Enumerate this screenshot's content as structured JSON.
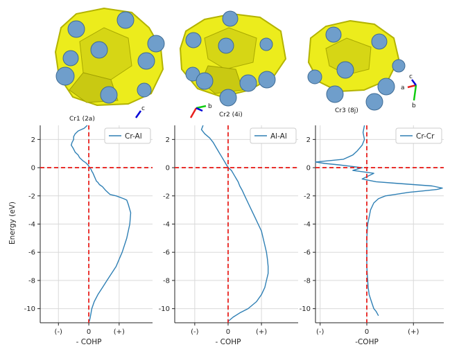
{
  "structures": [
    {
      "label": "Cr1 (2a)"
    },
    {
      "label": "Cr2 (4i)"
    },
    {
      "label": "Cr3 (8j)"
    }
  ],
  "axes_glyphs": {
    "a": "a",
    "b": "b",
    "c": "c"
  },
  "colors": {
    "curve": "#2e7fb4",
    "fermi": "#e8201d",
    "surface": "#ecec1c",
    "surface_shadow": "#b3b300",
    "atom": "#6f9ecb"
  },
  "chart_data": [
    {
      "type": "line",
      "panel": "Cr-Al",
      "series": [
        {
          "name": "Cr-Al",
          "x": [
            0.02,
            0.05,
            0.1,
            0.18,
            0.3,
            0.45,
            0.6,
            0.75,
            0.9,
            1.0,
            1.1,
            1.25,
            1.35,
            1.38,
            1.3,
            1.25,
            1.15,
            0.9,
            0.7,
            0.55,
            0.45,
            0.35,
            0.3,
            0.25,
            0.22,
            0.2,
            0.17,
            0.15,
            0.13,
            0.1,
            0.08,
            0.05,
            0.02,
            -0.03,
            -0.1,
            -0.2,
            -0.3,
            -0.35,
            -0.45,
            -0.52,
            -0.58,
            -0.55,
            -0.5,
            -0.5,
            -0.45,
            -0.35,
            -0.15,
            -0.05
          ],
          "y": [
            -10.9,
            -10.6,
            -10.0,
            -9.5,
            -9.0,
            -8.5,
            -8.0,
            -7.5,
            -7.0,
            -6.5,
            -6.0,
            -5.0,
            -4.0,
            -3.2,
            -2.6,
            -2.3,
            -2.2,
            -2.0,
            -1.9,
            -1.6,
            -1.35,
            -1.2,
            -1.05,
            -0.95,
            -0.8,
            -0.7,
            -0.55,
            -0.45,
            -0.35,
            -0.25,
            -0.15,
            -0.05,
            0.05,
            0.2,
            0.35,
            0.5,
            0.7,
            0.9,
            1.1,
            1.4,
            1.6,
            1.8,
            2.0,
            2.2,
            2.4,
            2.6,
            2.8,
            3.0
          ]
        }
      ],
      "xlabel": "- COHP",
      "ylabel": "Energy (eV)",
      "xticklabels": [
        "(-)",
        "0",
        "(+)"
      ],
      "xticks": [
        -1,
        0,
        1
      ],
      "xlim": [
        -1.6,
        2.1
      ],
      "ylim": [
        -11.0,
        3.0
      ],
      "yticks": [
        2,
        0,
        -2,
        -4,
        -6,
        -8,
        -10
      ],
      "grid": true,
      "legend": "top-right",
      "fermi_level": 0
    },
    {
      "type": "line",
      "panel": "Al-Al",
      "series": [
        {
          "name": "Al-Al",
          "x": [
            0.0,
            0.15,
            0.35,
            0.6,
            0.85,
            1.0,
            1.1,
            1.15,
            1.2,
            1.2,
            1.18,
            1.15,
            1.1,
            1.05,
            1.0,
            0.9,
            0.8,
            0.7,
            0.6,
            0.5,
            0.42,
            0.35,
            0.3,
            0.25,
            0.2,
            0.15,
            0.1,
            0.05,
            0.0,
            -0.05,
            -0.1,
            -0.15,
            -0.2,
            -0.25,
            -0.3,
            -0.35,
            -0.4,
            -0.45,
            -0.55,
            -0.7,
            -0.8,
            -0.75
          ],
          "y": [
            -10.9,
            -10.6,
            -10.3,
            -10.0,
            -9.5,
            -9.0,
            -8.5,
            -8.0,
            -7.5,
            -7.0,
            -6.5,
            -6.0,
            -5.5,
            -5.0,
            -4.5,
            -4.0,
            -3.5,
            -3.0,
            -2.5,
            -2.0,
            -1.6,
            -1.3,
            -1.0,
            -0.8,
            -0.6,
            -0.4,
            -0.2,
            -0.1,
            0.0,
            0.2,
            0.4,
            0.6,
            0.8,
            1.0,
            1.2,
            1.4,
            1.6,
            1.8,
            2.1,
            2.4,
            2.7,
            3.0
          ]
        }
      ],
      "xlabel": "- COHP",
      "ylabel": "",
      "xticklabels": [
        "(-)",
        "0",
        "(+)"
      ],
      "xticks": [
        -1,
        0,
        1
      ],
      "xlim": [
        -1.6,
        2.1
      ],
      "ylim": [
        -11.0,
        3.0
      ],
      "yticks": [
        2,
        0,
        -2,
        -4,
        -6,
        -8,
        -10
      ],
      "grid": true,
      "legend": "top-right",
      "fermi_level": 0
    },
    {
      "type": "line",
      "panel": "Cr-Cr",
      "series": [
        {
          "name": "Cr-Cr",
          "x": [
            0.25,
            0.2,
            0.15,
            0.1,
            0.05,
            0.03,
            0.02,
            0.0,
            0.0,
            0.0,
            0.02,
            0.05,
            0.08,
            0.15,
            0.25,
            0.4,
            0.6,
            0.9,
            1.2,
            1.5,
            1.62,
            1.4,
            1.0,
            0.6,
            0.2,
            -0.1,
            0.15,
            -0.3,
            -0.1,
            -0.6,
            -0.9,
            -1.1,
            -0.5,
            -0.3,
            -0.2,
            -0.1,
            -0.05,
            -0.08,
            -0.05
          ],
          "y": [
            -10.5,
            -10.2,
            -10.0,
            -9.5,
            -9.0,
            -8.5,
            -8.0,
            -7.0,
            -6.0,
            -5.0,
            -4.0,
            -3.5,
            -3.0,
            -2.5,
            -2.2,
            -2.0,
            -1.9,
            -1.75,
            -1.65,
            -1.55,
            -1.45,
            -1.3,
            -1.2,
            -1.1,
            -1.0,
            -0.8,
            -0.4,
            -0.2,
            0.0,
            0.2,
            0.3,
            0.4,
            0.6,
            0.9,
            1.2,
            1.6,
            2.0,
            2.5,
            3.0
          ]
        }
      ],
      "xlabel": "-COHP",
      "ylabel": "",
      "xticklabels": [
        "(-)",
        "0",
        "(+)"
      ],
      "xticks": [
        -1,
        0,
        1
      ],
      "xlim": [
        -1.1,
        1.65
      ],
      "ylim": [
        -11.0,
        3.0
      ],
      "yticks": [
        2,
        0,
        -2,
        -4,
        -6,
        -8,
        -10
      ],
      "grid": true,
      "legend": "top-right",
      "fermi_level": 0
    }
  ]
}
